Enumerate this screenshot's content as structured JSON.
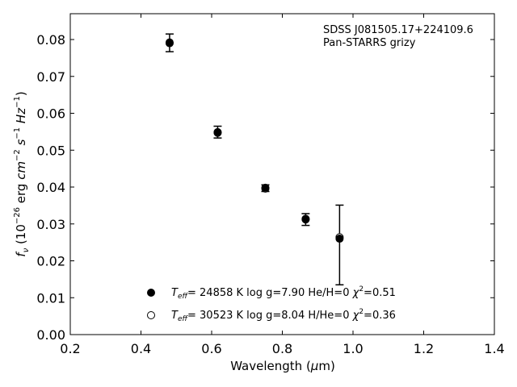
{
  "chart_data": {
    "type": "scatter",
    "xlabel": "Wavelength (μm)",
    "ylabel": "f_ν (10^−26 erg cm^−2 s^−1 Hz^−1)",
    "xlim": [
      0.2,
      1.4
    ],
    "ylim": [
      0.0,
      0.087
    ],
    "x_ticks": [
      "0.2",
      "0.4",
      "0.6",
      "0.8",
      "1.0",
      "1.2",
      "1.4"
    ],
    "x_tick_values": [
      0.2,
      0.4,
      0.6,
      0.8,
      1.0,
      1.2,
      1.4
    ],
    "y_ticks": [
      "0.00",
      "0.01",
      "0.02",
      "0.03",
      "0.04",
      "0.05",
      "0.06",
      "0.07",
      "0.08"
    ],
    "y_tick_values": [
      0.0,
      0.01,
      0.02,
      0.03,
      0.04,
      0.05,
      0.06,
      0.07,
      0.08
    ],
    "grid": false,
    "annotations": [
      "SDSS J081505.17+224109.6",
      "Pan-STARRS grizy"
    ],
    "observed": {
      "x": [
        0.481,
        0.617,
        0.752,
        0.866,
        0.962
      ],
      "y": [
        0.0791,
        0.0549,
        0.0397,
        0.0312,
        0.0243
      ],
      "yerr": [
        0.0024,
        0.0016,
        0.0009,
        0.0016,
        0.0108
      ]
    },
    "series": [
      {
        "name": "Teff= 24858 K  log g=7.90  He/H=0  χ²=0.51",
        "marker": "filled-circle",
        "x": [
          0.481,
          0.617,
          0.752,
          0.866,
          0.962
        ],
        "y": [
          0.0792,
          0.0549,
          0.0398,
          0.0312,
          0.026
        ]
      },
      {
        "name": "Teff= 30523 K  log g=8.04  H/He=0  χ²=0.36",
        "marker": "open-circle",
        "x": [
          0.481,
          0.617,
          0.752,
          0.866,
          0.962
        ],
        "y": [
          0.079,
          0.0547,
          0.0396,
          0.0314,
          0.0264
        ]
      }
    ],
    "legend_placement": "lower-center",
    "legend": [
      {
        "teff": "24858",
        "logg": "7.90",
        "comp": "He/H=0",
        "chi2": "0.51"
      },
      {
        "teff": "30523",
        "logg": "8.04",
        "comp": "H/He=0",
        "chi2": "0.36"
      }
    ]
  }
}
